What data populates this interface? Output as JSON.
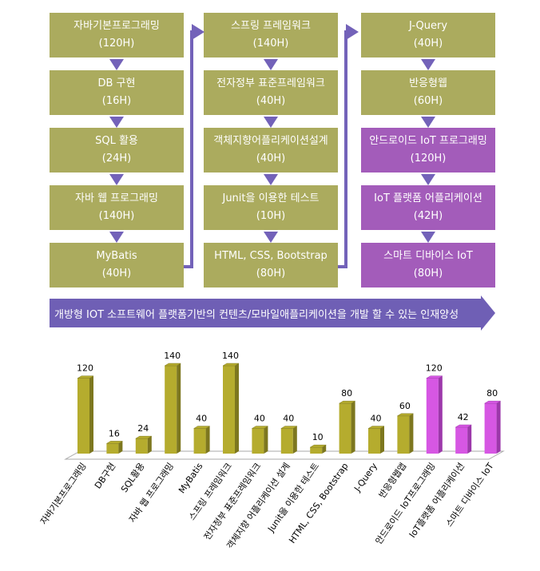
{
  "columns": [
    [
      {
        "name": "자바기본프로그래밍",
        "hours": "(120H)"
      },
      {
        "name": "DB 구현",
        "hours": "(16H)"
      },
      {
        "name": "SQL 활용",
        "hours": "(24H)"
      },
      {
        "name": "자바 웹 프로그래밍",
        "hours": "(140H)"
      },
      {
        "name": "MyBatis",
        "hours": "(40H)"
      }
    ],
    [
      {
        "name": "스프링 프레임워크",
        "hours": "(140H)"
      },
      {
        "name": "전자정부 표준프레임워크",
        "hours": "(40H)"
      },
      {
        "name": "객체지향어플리케이션설계",
        "hours": "(40H)"
      },
      {
        "name": "Junit을 이용한 테스트",
        "hours": "(10H)"
      },
      {
        "name": "HTML, CSS, Bootstrap",
        "hours": "(80H)"
      }
    ],
    [
      {
        "name": "J-Query",
        "hours": "(40H)"
      },
      {
        "name": "반응형웹",
        "hours": "(60H)"
      },
      {
        "name": "안드로이드 IoT 프로그래밍",
        "hours": "(120H)",
        "purple": true
      },
      {
        "name": "IoT 플랫폼 어플리케이션",
        "hours": "(42H)",
        "purple": true
      },
      {
        "name": "스마트 디바이스 IoT",
        "hours": "(80H)",
        "purple": true
      }
    ]
  ],
  "banner": "개방형 IOT 소프트웨어 플랫폼기반의 컨텐츠/모바일애플리케이션을 개발 할 수 있는 인재양성",
  "colors": {
    "box": "#abab5e",
    "box_purple": "#a35cba",
    "arrow": "#7362b9",
    "bar": "#b5ac2e",
    "bar_side": "#7d771f",
    "bar_purple": "#d657e3",
    "bar_purple_side": "#9c38aa"
  },
  "chart_data": {
    "type": "bar",
    "categories": [
      "자바기본프로그래밍",
      "DB구현",
      "SQL활용",
      "자바 웹 프로그래밍",
      "MyBatis",
      "스프링 프레임워크",
      "전자정부 표준프레임워크",
      "객체지향 어플리케이션 설계",
      "Junit을 이용한 테스트",
      "HTML, CSS, Bootstrap",
      "J-Query",
      "반응형웹앱",
      "안드로이드 IoT프로그래밍",
      "IoT플랫폼 어플리케이션",
      "스마트 디바이스 IoT"
    ],
    "values": [
      120,
      16,
      24,
      140,
      40,
      140,
      40,
      40,
      10,
      80,
      40,
      60,
      120,
      42,
      80
    ],
    "highlight": [
      false,
      false,
      false,
      false,
      false,
      false,
      false,
      false,
      false,
      false,
      false,
      false,
      true,
      true,
      true
    ],
    "data_labels": true,
    "grid": false,
    "ylim": [
      0,
      140
    ]
  }
}
